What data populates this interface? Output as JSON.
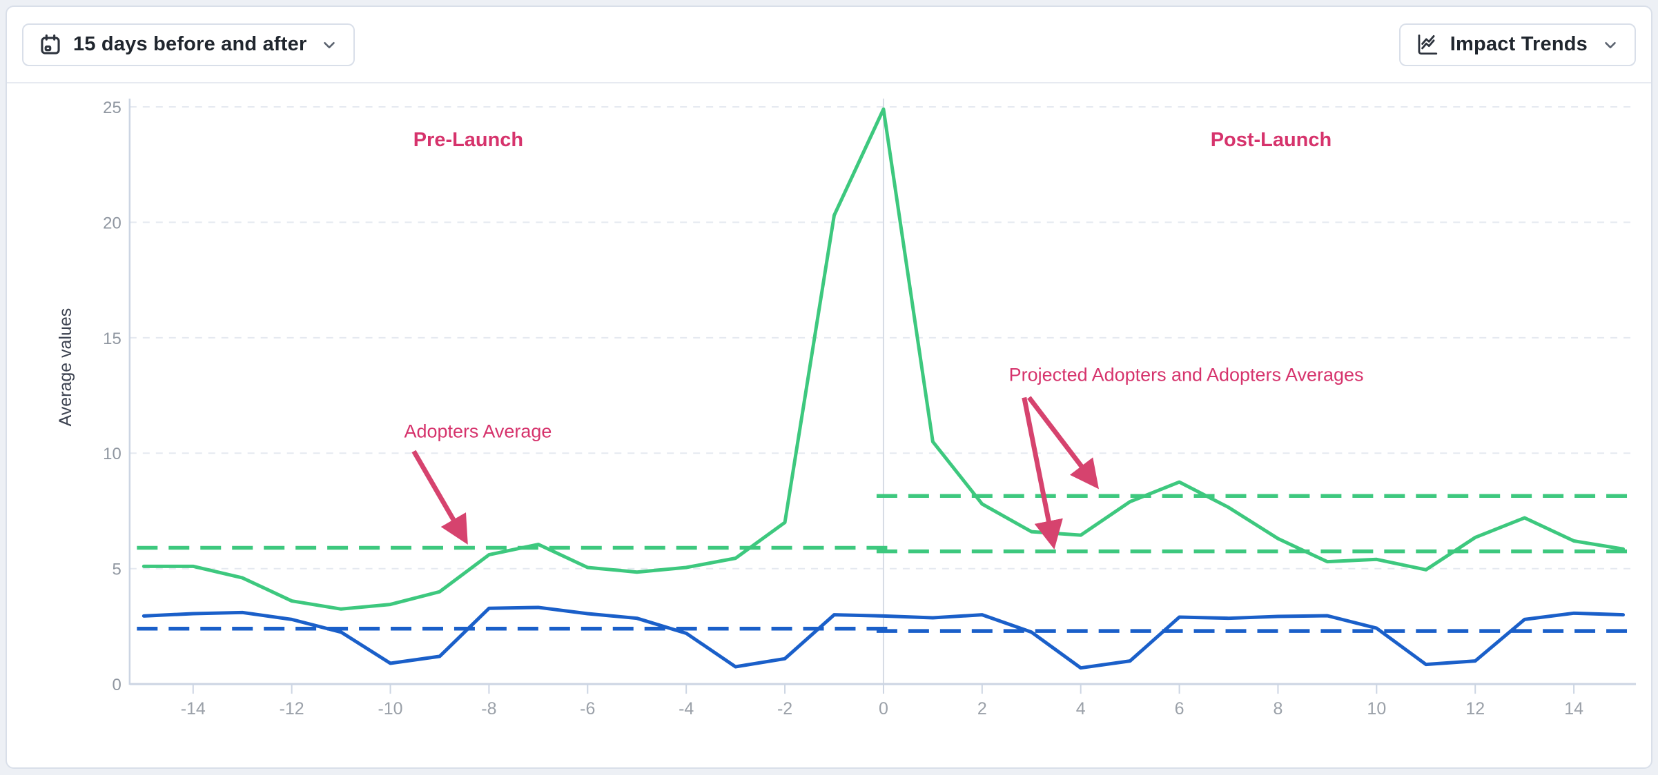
{
  "toolbar": {
    "range_selector": {
      "label": "15 days before and after",
      "icon": "calendar-icon"
    },
    "view_selector": {
      "label": "Impact Trends",
      "icon": "trend-chart-icon"
    }
  },
  "colors": {
    "adopters_green": "#3dc87e",
    "projected_blue": "#1a5fc9",
    "annotation_pink": "#d6336c",
    "arrow_pink": "#d6436e",
    "grid": "#e5e9f0",
    "axis": "#ccd5e3",
    "divider": "#d6dbe4",
    "tick_label": "#949aa4"
  },
  "chart_data": {
    "type": "line",
    "title": "",
    "xlabel": "",
    "ylabel": "Average values",
    "x": [
      -15,
      -14,
      -13,
      -12,
      -11,
      -10,
      -9,
      -8,
      -7,
      -6,
      -5,
      -4,
      -3,
      -2,
      -1,
      0,
      1,
      2,
      3,
      4,
      5,
      6,
      7,
      8,
      9,
      10,
      11,
      12,
      13,
      14,
      15
    ],
    "x_ticks": [
      -14,
      -12,
      -10,
      -8,
      -6,
      -4,
      -2,
      0,
      2,
      4,
      6,
      8,
      10,
      12,
      14
    ],
    "y_ticks": [
      0,
      5,
      10,
      15,
      20,
      25
    ],
    "ylim": [
      0,
      25.9
    ],
    "grid": "horizontal-dashed",
    "launch_divider_x": 0,
    "series": [
      {
        "name": "Adopters",
        "color": "#3dc87e",
        "style": "solid",
        "values": [
          5.1,
          5.1,
          4.6,
          3.6,
          3.25,
          3.45,
          4.0,
          5.6,
          6.05,
          5.05,
          4.85,
          5.05,
          5.45,
          7.0,
          20.3,
          24.9,
          10.5,
          7.8,
          6.6,
          6.45,
          7.9,
          8.75,
          7.65,
          6.3,
          5.3,
          5.4,
          4.95,
          6.35,
          7.2,
          6.2,
          5.85
        ]
      },
      {
        "name": "Projected Adopters",
        "color": "#1a5fc9",
        "style": "solid",
        "values": [
          2.95,
          3.05,
          3.1,
          2.8,
          2.25,
          0.9,
          1.2,
          3.28,
          3.32,
          3.05,
          2.85,
          2.2,
          0.75,
          1.1,
          3.0,
          2.95,
          2.87,
          3.0,
          2.25,
          0.7,
          1.0,
          2.9,
          2.85,
          2.93,
          2.96,
          2.42,
          0.85,
          1.0,
          2.8,
          3.07,
          3.0
        ]
      }
    ],
    "reference_lines": [
      {
        "name": "adopters-average-pre-launch",
        "value": 5.9,
        "span": [
          -15,
          0
        ],
        "color": "#3dc87e",
        "style": "dashed"
      },
      {
        "name": "adopters-average-post-launch",
        "value": 8.15,
        "span": [
          0,
          15
        ],
        "color": "#3dc87e",
        "style": "dashed"
      },
      {
        "name": "projected-adopters-average-post",
        "value": 5.75,
        "span": [
          0,
          15
        ],
        "color": "#3dc87e",
        "style": "dashed"
      },
      {
        "name": "projected-average-pre-launch",
        "value": 2.4,
        "span": [
          -15,
          0
        ],
        "color": "#1a5fc9",
        "style": "dashed"
      },
      {
        "name": "projected-average-post-launch",
        "value": 2.3,
        "span": [
          0,
          15
        ],
        "color": "#1a5fc9",
        "style": "dashed"
      }
    ],
    "annotations": {
      "pre_label": "Pre-Launch",
      "post_label": "Post-Launch",
      "adopters_average_label": "Adopters Average",
      "projected_label": "Projected Adopters and Adopters Averages"
    }
  }
}
